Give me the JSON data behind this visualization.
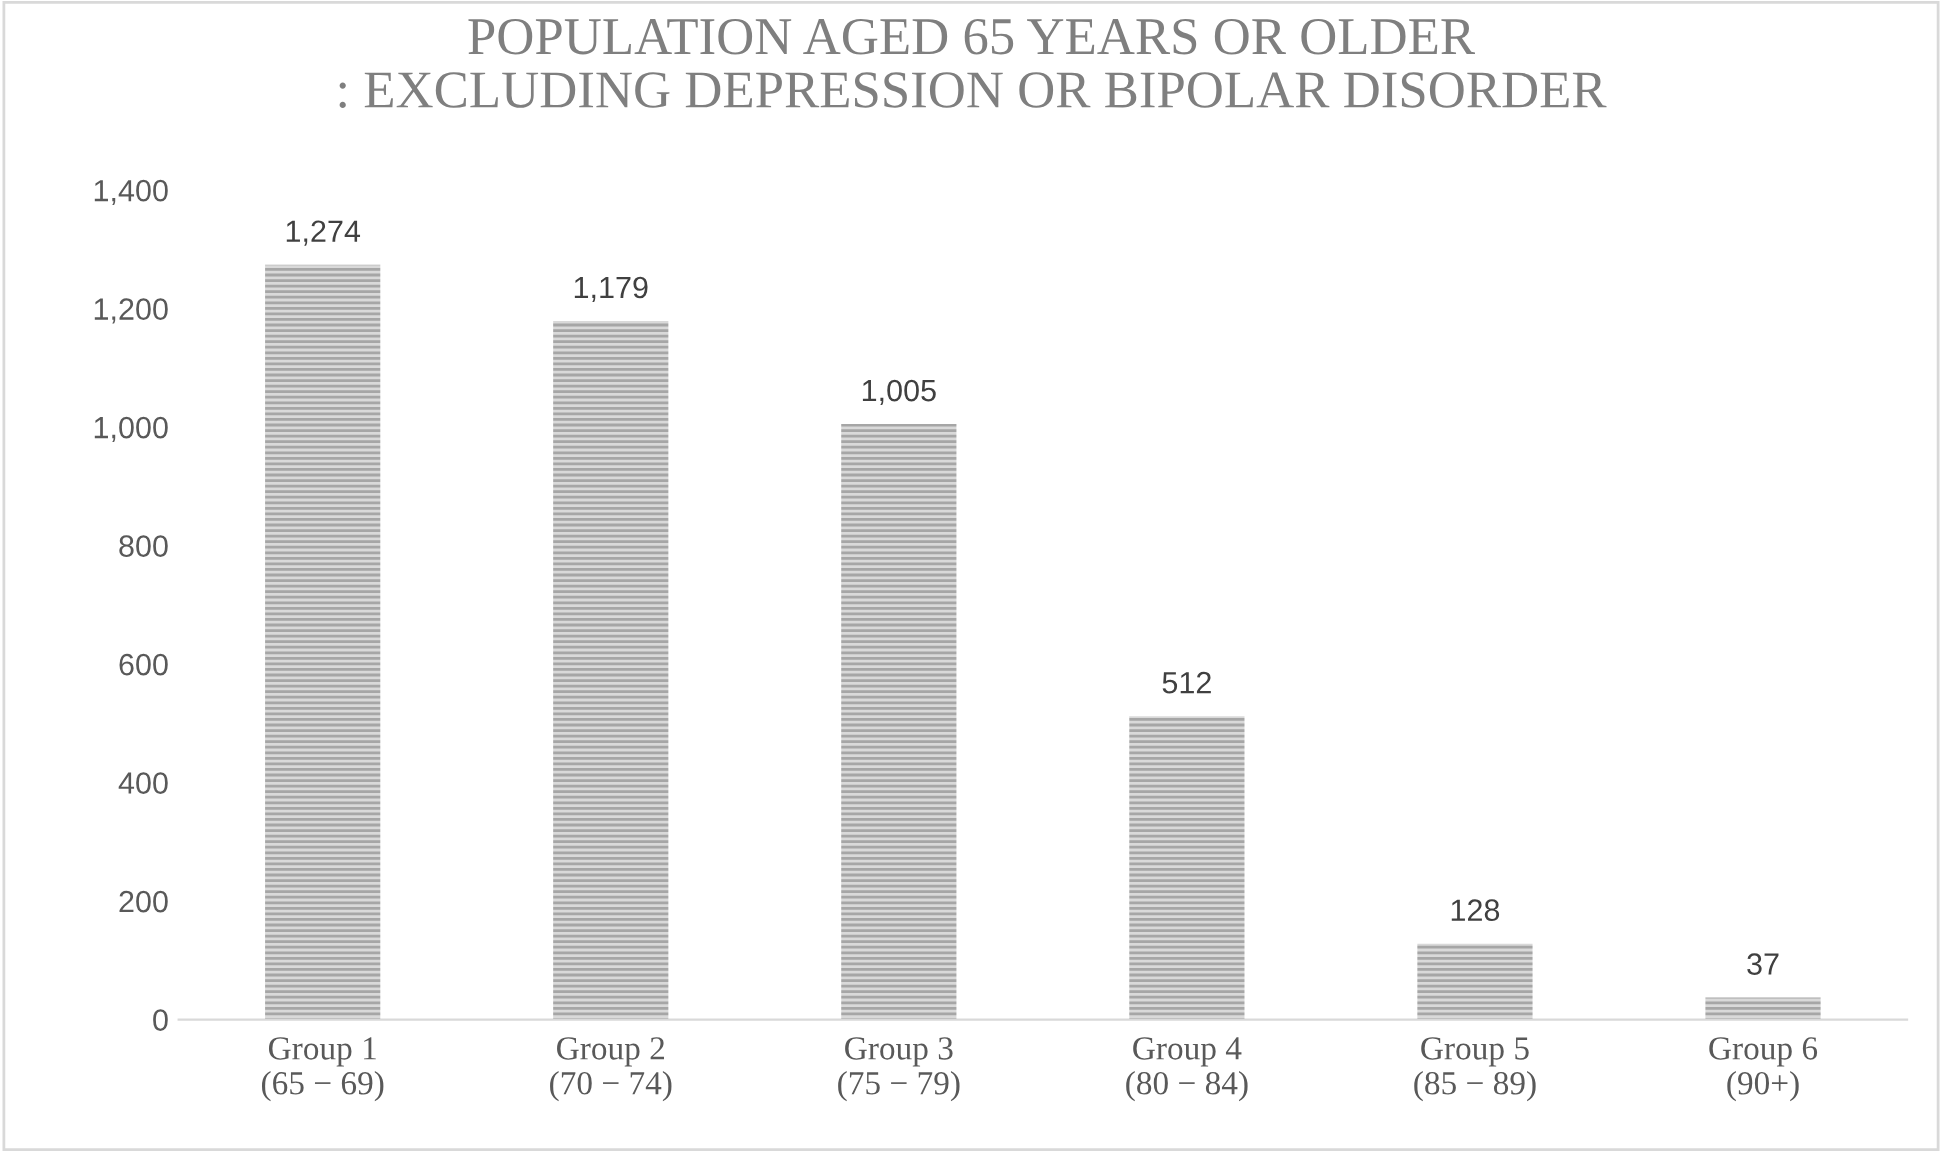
{
  "chart_data": {
    "type": "bar",
    "title": "POPULATION AGED 65 YEARS OR OLDER\n: EXCLUDING DEPRESSION OR BIPOLAR DISORDER",
    "categories": [
      "Group 1\n(65 − 69)",
      "Group 2\n(70 − 74)",
      "Group 3\n(75 − 79)",
      "Group 4\n(80 − 84)",
      "Group 5\n(85 − 89)",
      "Group 6\n(90+)"
    ],
    "values": [
      1274,
      1179,
      1005,
      512,
      128,
      37
    ],
    "color": "#a6a6a6",
    "value_labels": [
      "1,274",
      "1,179",
      "1,005",
      "512",
      "128",
      "37"
    ],
    "ylim": [
      0,
      1400
    ],
    "yticks": [
      {
        "value": 0,
        "label": "0"
      },
      {
        "value": 200,
        "label": "200"
      },
      {
        "value": 400,
        "label": "400"
      },
      {
        "value": 600,
        "label": "600"
      },
      {
        "value": 800,
        "label": "800"
      },
      {
        "value": 1000,
        "label": "1,000"
      },
      {
        "value": 1200,
        "label": "1,200"
      },
      {
        "value": 1400,
        "label": "1,400"
      }
    ],
    "grid": false
  }
}
